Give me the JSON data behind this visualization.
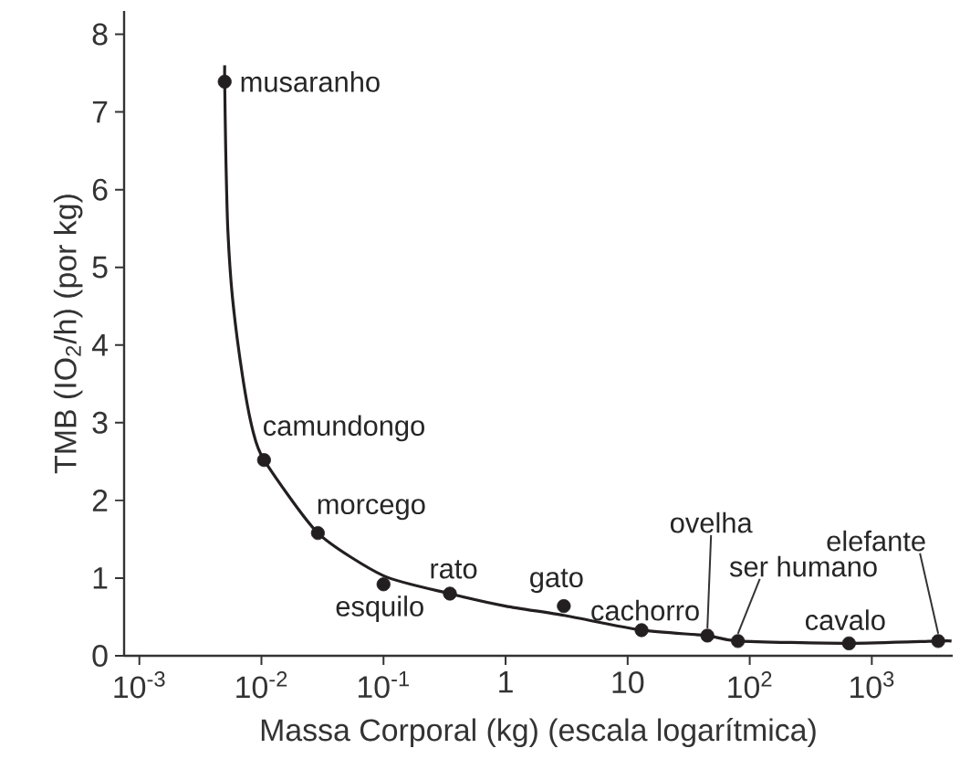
{
  "chart_data": {
    "type": "scatter",
    "xlabel": "Massa Corporal (kg) (escala logarítmica)",
    "ylabel": "TMB (IO$_{2}$/h) (por kg)",
    "log": "x",
    "xlim": [
      0.00075,
      4600
    ],
    "ylim": [
      0,
      8.3
    ],
    "xticks": [
      {
        "value": 0.001,
        "label": "10$^{-3}$"
      },
      {
        "value": 0.01,
        "label": "10$^{-2}$"
      },
      {
        "value": 0.1,
        "label": "10$^{-1}$"
      },
      1,
      10,
      {
        "value": 100,
        "label": "10$^{2}$"
      },
      {
        "value": 1000,
        "label": "10$^{3}$"
      }
    ],
    "yticks": [
      0,
      1,
      2,
      3,
      4,
      5,
      6,
      7,
      8
    ],
    "series": [
      {
        "type": "line",
        "color": "#231f20",
        "line_style": "solid",
        "x": [
          0.005,
          0.005,
          0.0051,
          0.0053,
          0.0058,
          0.007,
          0.0085,
          0.0105,
          0.029,
          0.1,
          0.35,
          1,
          3,
          13,
          45,
          80,
          650,
          3500,
          4500
        ],
        "values": [
          7.6,
          7.39,
          6.5,
          5.5,
          4.6,
          3.6,
          2.9,
          2.52,
          1.58,
          1.03,
          0.8,
          0.64,
          0.52,
          0.33,
          0.26,
          0.19,
          0.16,
          0.19,
          0.19
        ]
      },
      {
        "color": "#231f20",
        "marker": "circle",
        "x": [
          0.005,
          0.0105,
          0.029,
          0.1,
          0.35,
          3,
          13,
          45,
          80,
          650,
          3500
        ],
        "values": [
          7.39,
          2.52,
          1.58,
          0.92,
          0.8,
          0.64,
          0.33,
          0.26,
          0.19,
          0.16,
          0.19
        ]
      }
    ],
    "annotations": [
      {
        "text": "musaranho",
        "x": 0.005,
        "y": 7.39
      },
      {
        "text": "camundongo",
        "x": 0.0105,
        "y": 2.52
      },
      {
        "text": "morcego",
        "x": 0.029,
        "y": 1.58
      },
      {
        "text": "esquilo",
        "x": 0.1,
        "y": 0.92
      },
      {
        "text": "rato",
        "x": 0.35,
        "y": 0.8
      },
      {
        "text": "gato",
        "x": 3,
        "y": 0.64
      },
      {
        "text": "cachorro",
        "x": 13,
        "y": 0.33
      },
      {
        "text": "ovelha",
        "x": 45,
        "y": 0.26
      },
      {
        "text": "ser humano",
        "x": 80,
        "y": 0.19
      },
      {
        "text": "cavalo",
        "x": 650,
        "y": 0.16
      },
      {
        "text": "elefante",
        "x": 3500,
        "y": 0.19
      }
    ]
  }
}
